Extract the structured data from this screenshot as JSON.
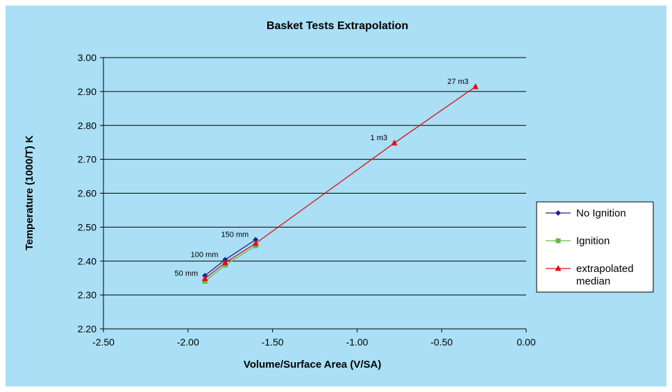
{
  "chart_data": {
    "type": "line",
    "title": "Basket Tests Extrapolation",
    "xlabel": "Volume/Surface Area (V/SA)",
    "ylabel": "Temperature (1000/T) K",
    "xlim": [
      -2.5,
      0.0
    ],
    "ylim": [
      2.2,
      3.0
    ],
    "x_ticks": [
      -2.5,
      -2.0,
      -1.5,
      -1.0,
      -0.5,
      0.0
    ],
    "x_tick_labels": [
      "-2.50",
      "-2.00",
      "-1.50",
      "-1.00",
      "-0.50",
      "0.00"
    ],
    "y_ticks": [
      2.2,
      2.3,
      2.4,
      2.5,
      2.6,
      2.7,
      2.8,
      2.9,
      3.0
    ],
    "y_tick_labels": [
      "2.20",
      "2.30",
      "2.40",
      "2.50",
      "2.60",
      "2.70",
      "2.80",
      "2.90",
      "3.00"
    ],
    "grid": "horizontal",
    "legend_position": "right",
    "series": [
      {
        "name": "No Ignition",
        "color": "#1f1f8f",
        "marker": "diamond",
        "x": [
          -1.9,
          -1.78,
          -1.6
        ],
        "y": [
          2.357,
          2.404,
          2.463
        ]
      },
      {
        "name": "Ignition",
        "color": "#66bb44",
        "marker": "square",
        "x": [
          -1.9,
          -1.78,
          -1.6
        ],
        "y": [
          2.34,
          2.388,
          2.445
        ]
      },
      {
        "name": "extrapolated median",
        "color": "#dd1111",
        "marker": "triangle",
        "x": [
          -1.9,
          -1.78,
          -1.6,
          -0.78,
          -0.3
        ],
        "y": [
          2.348,
          2.395,
          2.452,
          2.748,
          2.914
        ]
      }
    ],
    "annotations": [
      {
        "text": "50 mm",
        "x": -1.9,
        "y": 2.348
      },
      {
        "text": "100 mm",
        "x": -1.78,
        "y": 2.404
      },
      {
        "text": "150 mm",
        "x": -1.6,
        "y": 2.463
      },
      {
        "text": "1 m3",
        "x": -0.78,
        "y": 2.748
      },
      {
        "text": "27 m3",
        "x": -0.3,
        "y": 2.914
      }
    ]
  },
  "colors": {
    "chart_background": "#aadff5",
    "plot_background": "#aadff5",
    "legend_background": "#ffffff",
    "gridline": "#000000"
  }
}
